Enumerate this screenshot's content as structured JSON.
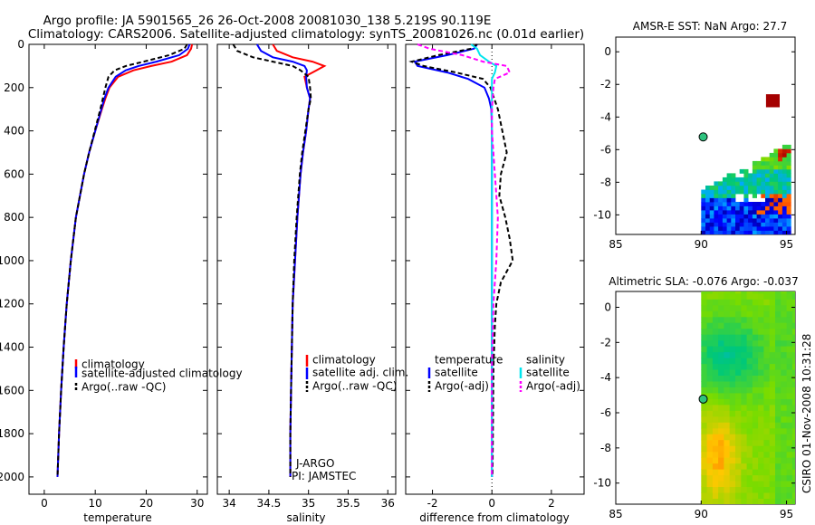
{
  "header": {
    "title_line1": "Argo profile: JA 5901565_26 26-Oct-2008 20081030_138 5.219S 90.119E",
    "title_line2": "Climatology: CARS2006. Satellite-adjusted climatology: synTS_20081026.nc (0.01d earlier)"
  },
  "colors": {
    "climatology": "#ff0000",
    "satellite": "#0000ff",
    "argo": "#000000",
    "sal_satellite": "#00e5ee",
    "sal_argo": "#ff00ff"
  },
  "chart_data": [
    {
      "id": "temperature",
      "type": "line",
      "xlabel": "temperature",
      "ylabel": "",
      "xlim": [
        -3,
        32
      ],
      "ylim": [
        2080,
        0
      ],
      "xticks": [
        0,
        10,
        20,
        30
      ],
      "yticks": [
        0,
        200,
        400,
        600,
        800,
        1000,
        1200,
        1400,
        1600,
        1800,
        2000
      ],
      "legend": [
        "climatology",
        "satellite-adjusted climatology",
        "Argo(..raw -QC)"
      ],
      "series": [
        {
          "name": "climatology",
          "depth": [
            0,
            20,
            50,
            80,
            100,
            120,
            150,
            200,
            250,
            300,
            400,
            500,
            600,
            800,
            1000,
            1200,
            1400,
            1600,
            1800,
            2000
          ],
          "values": [
            29,
            28.8,
            28,
            25,
            21,
            17.5,
            14.5,
            12.8,
            12,
            11.3,
            10,
            8.8,
            7.8,
            6.2,
            5.2,
            4.4,
            3.8,
            3.3,
            2.9,
            2.6
          ]
        },
        {
          "name": "satellite-adjusted climatology",
          "depth": [
            0,
            20,
            50,
            80,
            100,
            120,
            150,
            200,
            250,
            300,
            400,
            500,
            600,
            800,
            1000,
            1200,
            1400,
            1600,
            1800,
            2000
          ],
          "values": [
            28.5,
            28.2,
            26.5,
            22,
            18.5,
            16,
            14,
            12.6,
            11.8,
            11.2,
            10,
            8.8,
            7.8,
            6.2,
            5.2,
            4.4,
            3.8,
            3.3,
            2.9,
            2.6
          ]
        },
        {
          "name": "Argo(..raw -QC)",
          "depth": [
            0,
            20,
            50,
            80,
            100,
            120,
            150,
            200,
            250,
            300,
            400,
            500,
            600,
            800,
            1000,
            1200,
            1400,
            1600,
            1800,
            2000
          ],
          "values": [
            28,
            27.5,
            24.5,
            19.5,
            16,
            13.8,
            12.6,
            12,
            11.5,
            11,
            9.9,
            8.8,
            7.8,
            6.2,
            5.2,
            4.4,
            3.8,
            3.3,
            2.9,
            2.6
          ]
        }
      ]
    },
    {
      "id": "salinity",
      "type": "line",
      "xlabel": "salinity",
      "xlim": [
        33.85,
        36.1
      ],
      "ylim": [
        2080,
        0
      ],
      "xticks": [
        34,
        34.5,
        35,
        35.5,
        36
      ],
      "xticklabels": [
        "34",
        "34.5",
        "35",
        "35.5",
        "36"
      ],
      "legend": [
        "climatology",
        "satellite adj. clim.",
        "Argo(..raw -QC)"
      ],
      "annotations": [
        "J-ARGO",
        "PI: JAMSTEC"
      ],
      "series": [
        {
          "name": "climatology",
          "depth": [
            0,
            30,
            60,
            80,
            100,
            120,
            150,
            200,
            250,
            300,
            400,
            500,
            600,
            800,
            1000,
            1200,
            1400,
            1600,
            1800,
            2000
          ],
          "values": [
            34.55,
            34.6,
            34.8,
            35.05,
            35.2,
            35.1,
            34.95,
            34.98,
            35.02,
            35,
            34.97,
            34.93,
            34.9,
            34.86,
            34.83,
            34.8,
            34.79,
            34.78,
            34.77,
            34.77
          ]
        },
        {
          "name": "satellite adj. clim.",
          "depth": [
            0,
            30,
            60,
            80,
            100,
            120,
            150,
            200,
            250,
            300,
            400,
            500,
            600,
            800,
            1000,
            1200,
            1400,
            1600,
            1800,
            2000
          ],
          "values": [
            34.35,
            34.4,
            34.55,
            34.8,
            34.95,
            34.98,
            34.97,
            34.98,
            35.02,
            35,
            34.97,
            34.93,
            34.9,
            34.86,
            34.83,
            34.8,
            34.79,
            34.78,
            34.77,
            34.77
          ]
        },
        {
          "name": "Argo(..raw -QC)",
          "depth": [
            0,
            30,
            60,
            80,
            100,
            120,
            150,
            200,
            250,
            300,
            400,
            500,
            600,
            800,
            1000,
            1200,
            1400,
            1600,
            1800,
            2000
          ],
          "values": [
            34.05,
            34.1,
            34.3,
            34.55,
            34.8,
            34.9,
            35,
            35.02,
            35.03,
            35,
            34.96,
            34.92,
            34.89,
            34.85,
            34.82,
            34.8,
            34.79,
            34.78,
            34.77,
            34.77
          ]
        }
      ]
    },
    {
      "id": "difference",
      "type": "line",
      "xlabel": "difference from climatology",
      "xlim": [
        -2.9,
        3.1
      ],
      "ylim": [
        2080,
        0
      ],
      "xticks": [
        -2,
        0,
        2
      ],
      "legend_temperature_header": "temperature",
      "legend_salinity_header": "salinity",
      "legend_temperature": [
        "satellite",
        "Argo(-adj)"
      ],
      "legend_salinity": [
        "satellite",
        "Argo(-adj)"
      ],
      "series": [
        {
          "name": "temperature satellite",
          "depth": [
            0,
            20,
            50,
            80,
            100,
            130,
            160,
            200,
            250,
            300,
            400,
            600,
            800,
            1000,
            1300,
            2000
          ],
          "values": [
            -0.5,
            -0.6,
            -1.5,
            -2.6,
            -2.5,
            -1.5,
            -0.8,
            -0.25,
            -0.1,
            -0.02,
            0,
            0,
            0,
            0,
            0,
            0
          ]
        },
        {
          "name": "temperature Argo(-adj)",
          "depth": [
            0,
            20,
            50,
            80,
            100,
            130,
            160,
            200,
            300,
            400,
            500,
            600,
            700,
            800,
            900,
            1000,
            1100,
            1200,
            1300,
            1500,
            2000
          ],
          "values": [
            -0.5,
            -0.7,
            -1.8,
            -2.7,
            -2.3,
            -1.2,
            -0.3,
            -0.05,
            0.2,
            0.35,
            0.5,
            0.3,
            0.25,
            0.45,
            0.6,
            0.7,
            0.3,
            0.15,
            0.1,
            0.05,
            0.02
          ]
        },
        {
          "name": "salinity satellite",
          "depth": [
            0,
            20,
            50,
            80,
            100,
            130,
            160,
            200,
            300,
            400,
            600,
            800,
            1000,
            1200,
            1500,
            2000
          ],
          "values": [
            -0.7,
            -0.5,
            -0.4,
            -0.1,
            0.15,
            0.1,
            0,
            0,
            0,
            0,
            0,
            0,
            0,
            0,
            0,
            0
          ]
        },
        {
          "name": "salinity Argo(-adj)",
          "depth": [
            0,
            20,
            50,
            80,
            100,
            130,
            160,
            200,
            300,
            400,
            600,
            800,
            1000,
            1200,
            1500,
            2000
          ],
          "values": [
            -2.5,
            -2.1,
            -1.0,
            -0.3,
            0.5,
            0.6,
            0.1,
            0.05,
            0,
            0,
            0.1,
            0.2,
            0.15,
            0.05,
            0,
            0
          ]
        }
      ]
    },
    {
      "id": "sst_map",
      "type": "heatmap",
      "title": "AMSR-E SST: NaN Argo: 27.7",
      "xlim": [
        85,
        95.5
      ],
      "ylim": [
        -11.2,
        0.9
      ],
      "xticks": [
        85,
        90,
        95
      ],
      "yticks": [
        0,
        -2,
        -4,
        -6,
        -8,
        -10
      ],
      "float_position": [
        90.119,
        -5.219
      ]
    },
    {
      "id": "sla_map",
      "type": "heatmap",
      "title": "Altimetric SLA: -0.076 Argo: -0.037",
      "xlim": [
        85,
        95.5
      ],
      "ylim": [
        -11.2,
        0.9
      ],
      "xticks": [
        85,
        90,
        95
      ],
      "yticks": [
        0,
        -2,
        -4,
        -6,
        -8,
        -10
      ],
      "float_position": [
        90.119,
        -5.219
      ]
    }
  ],
  "footer": {
    "credit": "CSIRO 01-Nov-2008 10:31:28"
  }
}
